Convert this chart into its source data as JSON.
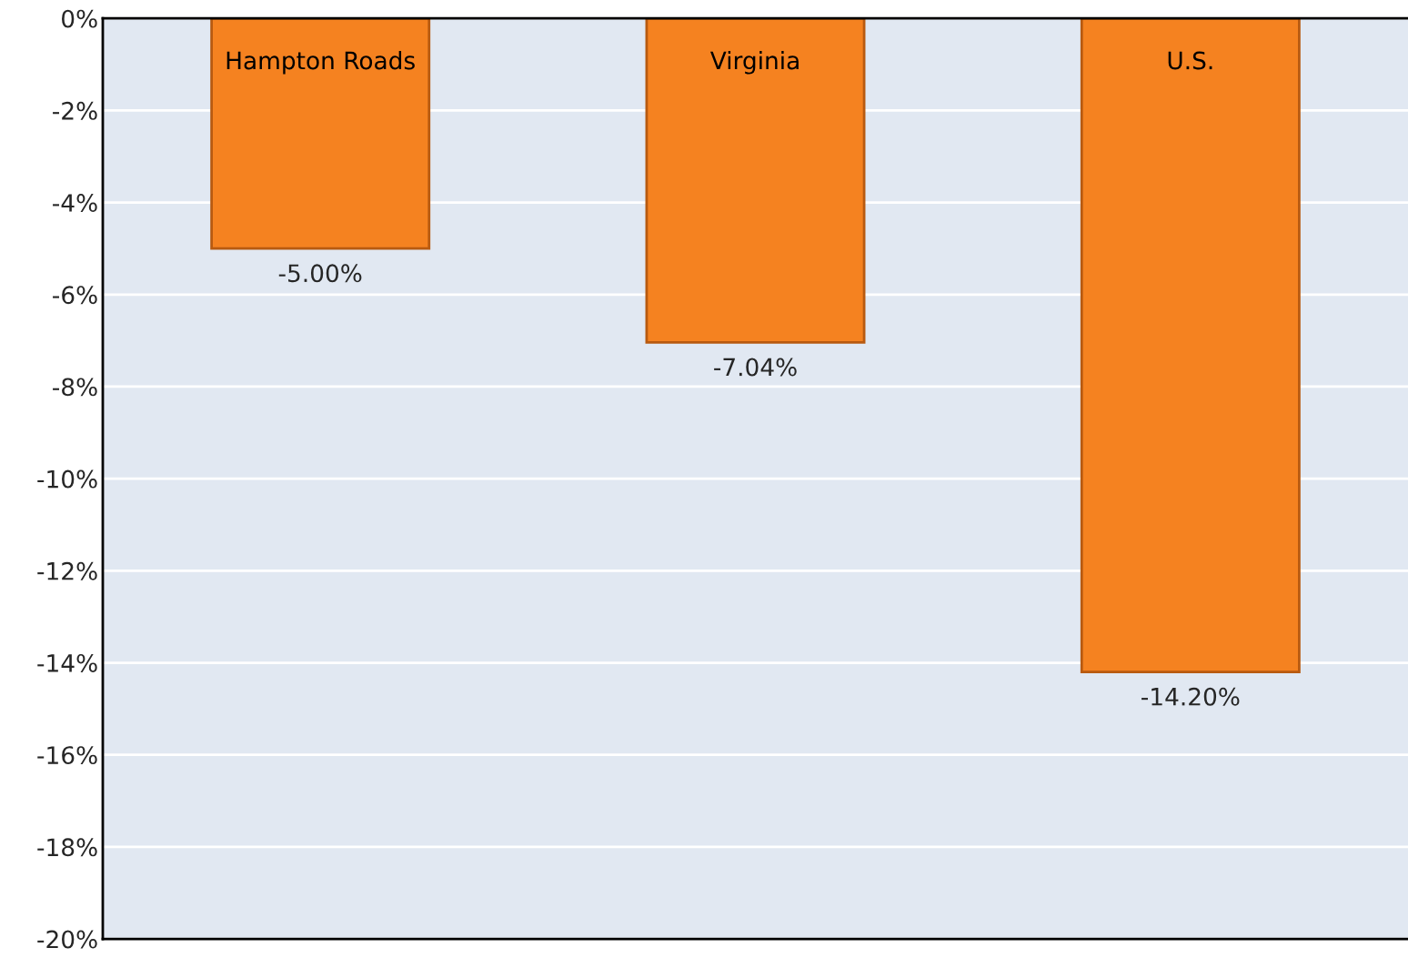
{
  "chart_data": {
    "type": "bar",
    "categories": [
      "Hampton Roads",
      "Virginia",
      "U.S."
    ],
    "values": [
      -5.0,
      -7.04,
      -14.2
    ],
    "value_labels": [
      "-5.00%",
      "-7.04%",
      "-14.20%"
    ],
    "color": "#f58220",
    "ylim": [
      -20,
      0
    ],
    "yticks": [
      {
        "value": 0,
        "label": "0%"
      },
      {
        "value": -2,
        "label": "-2%"
      },
      {
        "value": -4,
        "label": "-4%"
      },
      {
        "value": -6,
        "label": "-6%"
      },
      {
        "value": -8,
        "label": "-8%"
      },
      {
        "value": -10,
        "label": "-10%"
      },
      {
        "value": -12,
        "label": "-12%"
      },
      {
        "value": -14,
        "label": "-14%"
      },
      {
        "value": -16,
        "label": "-16%"
      },
      {
        "value": -18,
        "label": "-18%"
      },
      {
        "value": -20,
        "label": "-20%"
      }
    ],
    "grid": "y"
  }
}
